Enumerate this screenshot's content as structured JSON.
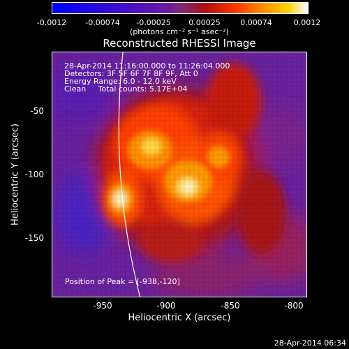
{
  "colorbar": {
    "ticks": [
      "-0.0012",
      "-0.00074",
      "-0.00025",
      "0.00025",
      "0.00074",
      "0.0012"
    ],
    "unit": "(photons cm⁻² s⁻¹ asec⁻²)"
  },
  "title": "Reconstructed RHESSI Image",
  "info": {
    "line1": "28-Apr-2014 11:16:00.000 to 11:26:04.000",
    "line2": "Detectors: 3F 5F 6F 7F 8F 9F, Att 0",
    "line3": "Energy Range: 6.0 - 12.0 keV",
    "line4": "Clean     Total counts: 5.17E+04"
  },
  "peak": "Position of Peak = [-938,-120]",
  "axes": {
    "xlabel": "Heliocentric X (arcsec)",
    "ylabel": "Heliocentric Y (arcsec)",
    "xticks": [
      "-950",
      "-900",
      "-850",
      "-800"
    ],
    "yticks": [
      "-50",
      "-100",
      "-150"
    ]
  },
  "timestamp": "28-Apr-2014 06:34"
}
